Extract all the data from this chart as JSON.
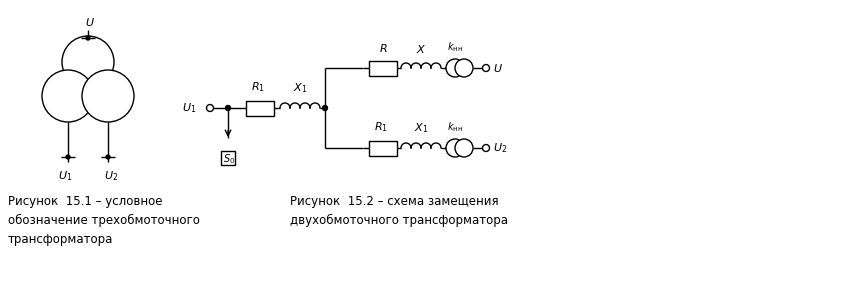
{
  "fig_width": 8.57,
  "fig_height": 2.92,
  "dpi": 100,
  "bg_color": "#ffffff",
  "line_color": "#000000",
  "caption1": "Рисунок  15.1 – условное\nобозначение трехобмоточного\nтрансформатора",
  "caption2": "Рисунок  15.2 – схема замещения\nдвухобмоточного трансформатора",
  "lw": 1.0
}
